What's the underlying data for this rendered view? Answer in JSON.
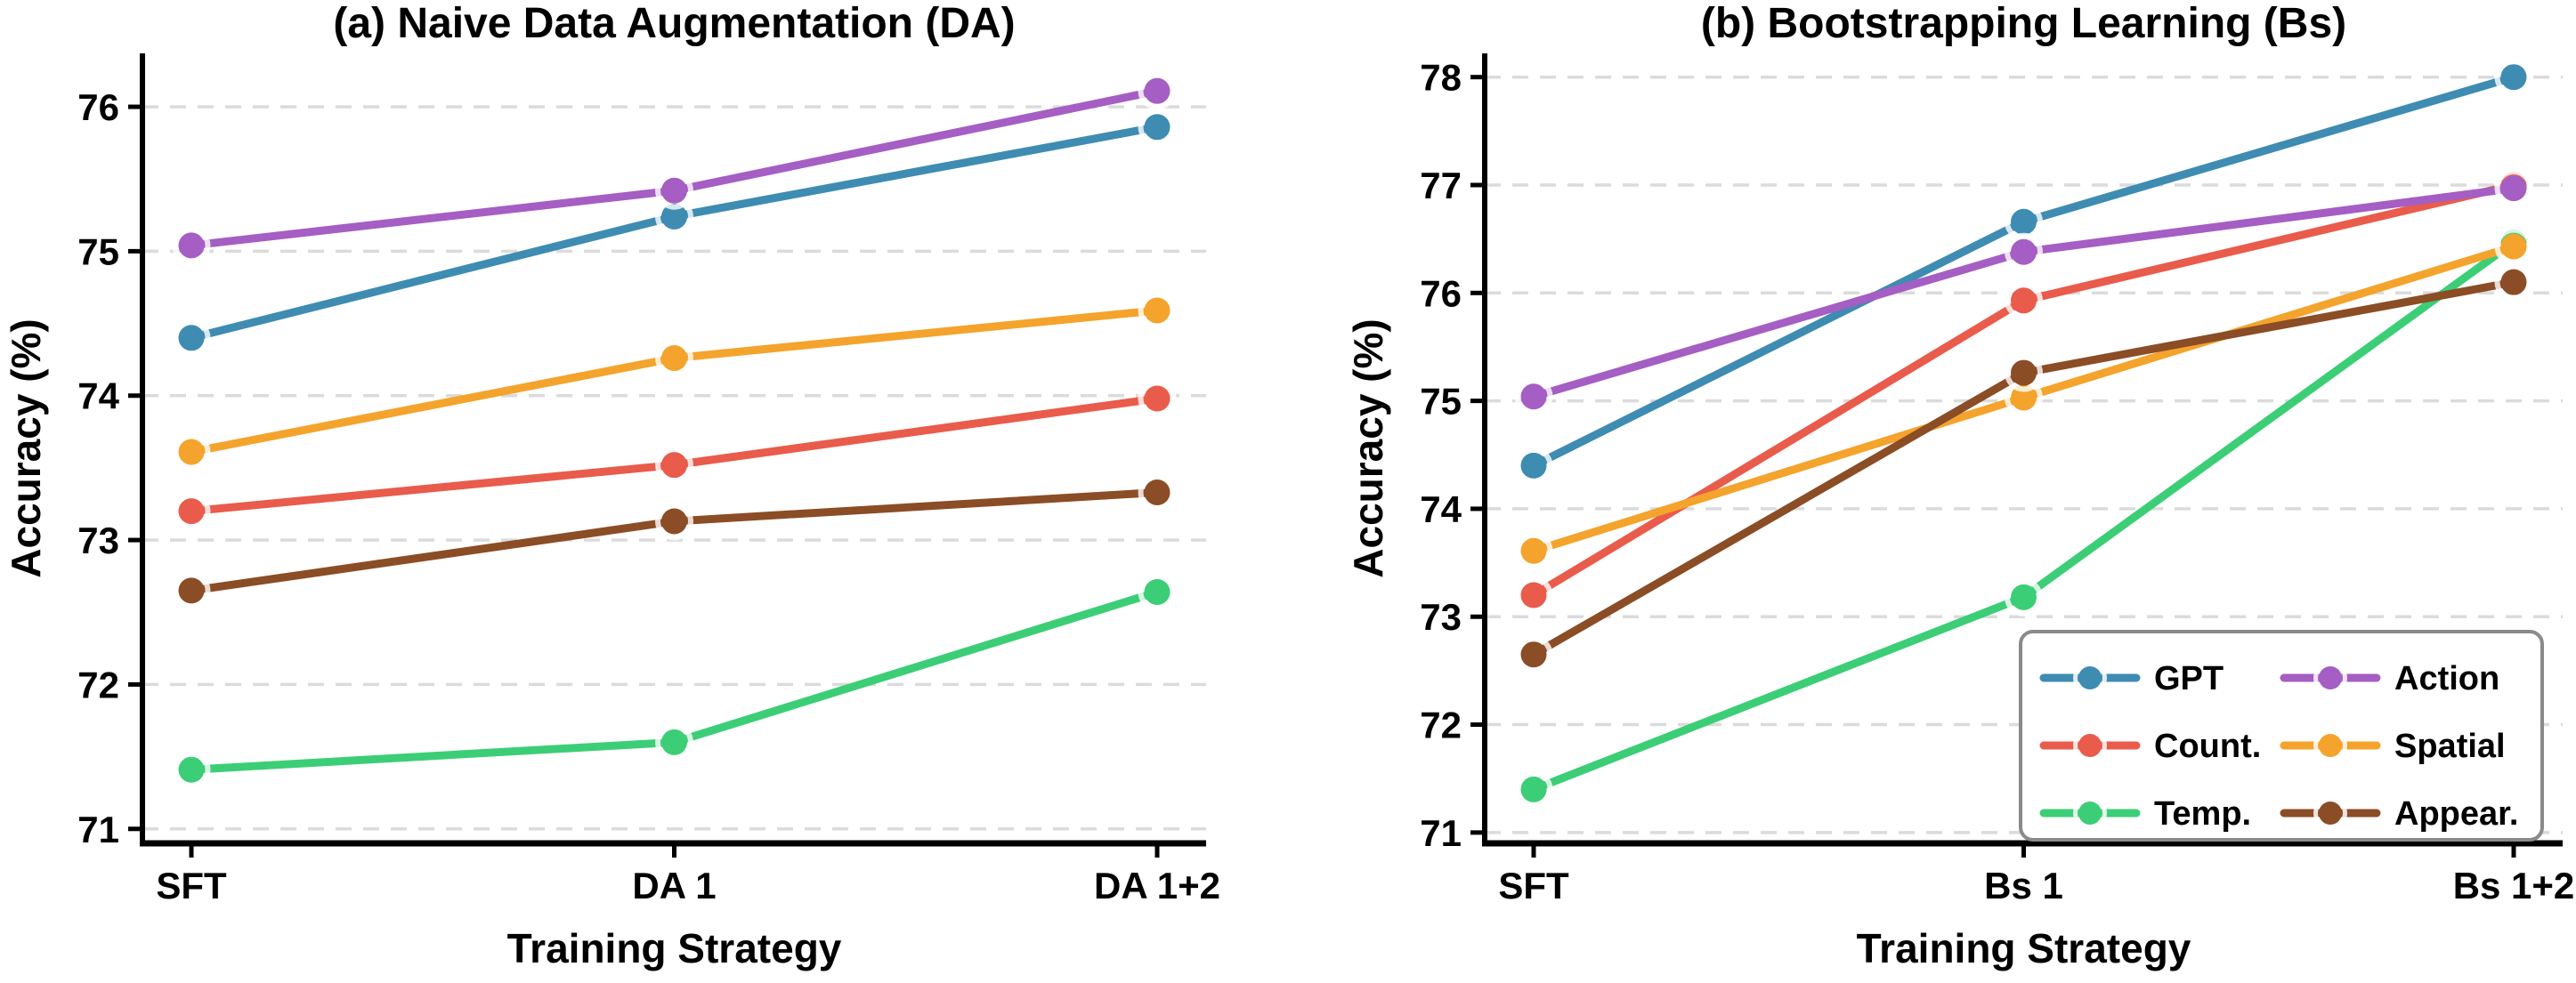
{
  "figure": {
    "background": "#ffffff",
    "grid_color": "#dbdbdb",
    "halo_color": "#ffffff",
    "legend_border_color": "#8a8a8a"
  },
  "chart_data": [
    {
      "type": "line",
      "title": "(a) Naive Data Augmentation (DA)",
      "xlabel": "Training Strategy",
      "ylabel": "Accuracy (%)",
      "categories": [
        "SFT",
        "DA 1",
        "DA 1+2"
      ],
      "y_ticks": [
        71,
        72,
        73,
        74,
        75,
        76
      ],
      "ylim": [
        70.9,
        76.37
      ],
      "grid": true,
      "legend_position": null,
      "series": [
        {
          "name": "GPT",
          "color": "#3e8cb2",
          "values": [
            74.4,
            75.24,
            75.86
          ]
        },
        {
          "name": "Count.",
          "color": "#e95b4b",
          "values": [
            73.2,
            73.52,
            73.98
          ]
        },
        {
          "name": "Temp.",
          "color": "#3cce76",
          "values": [
            71.41,
            71.6,
            72.64
          ]
        },
        {
          "name": "Action",
          "color": "#a55ec3",
          "values": [
            75.04,
            75.42,
            76.11
          ]
        },
        {
          "name": "Spatial",
          "color": "#f4a32c",
          "values": [
            73.61,
            74.26,
            74.59
          ]
        },
        {
          "name": "Appear.",
          "color": "#8b4d25",
          "values": [
            72.65,
            73.13,
            73.33
          ]
        }
      ]
    },
    {
      "type": "line",
      "title": "(b) Bootstrapping Learning (Bs)",
      "xlabel": "Training Strategy",
      "ylabel": "Accuracy (%)",
      "categories": [
        "SFT",
        "Bs 1",
        "Bs 1+2"
      ],
      "y_ticks": [
        71,
        72,
        73,
        74,
        75,
        76,
        77,
        78
      ],
      "ylim": [
        70.9,
        78.22
      ],
      "grid": true,
      "legend_position": "lower-right",
      "series": [
        {
          "name": "GPT",
          "color": "#3e8cb2",
          "values": [
            74.4,
            76.66,
            78.0
          ]
        },
        {
          "name": "Count.",
          "color": "#e95b4b",
          "values": [
            73.2,
            75.93,
            77.0
          ]
        },
        {
          "name": "Temp.",
          "color": "#3cce76",
          "values": [
            71.4,
            73.18,
            76.47
          ]
        },
        {
          "name": "Action",
          "color": "#a55ec3",
          "values": [
            75.04,
            76.38,
            76.97
          ]
        },
        {
          "name": "Spatial",
          "color": "#f4a32c",
          "values": [
            73.61,
            75.03,
            76.43
          ]
        },
        {
          "name": "Appear.",
          "color": "#8b4d25",
          "values": [
            72.65,
            75.26,
            76.1
          ]
        }
      ]
    }
  ]
}
